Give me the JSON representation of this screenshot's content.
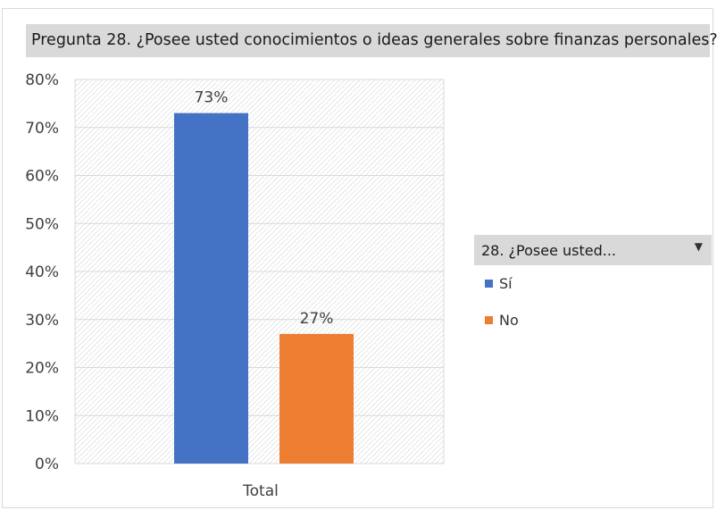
{
  "chart_data": {
    "type": "bar",
    "title": "Pregunta 28. ¿Posee usted conocimientos o ideas generales sobre finanzas personales?",
    "categories": [
      "Total"
    ],
    "series": [
      {
        "name": "Sí",
        "values": [
          73
        ],
        "label": "73%",
        "color": "#4472c4"
      },
      {
        "name": "No",
        "values": [
          27
        ],
        "label": "27%",
        "color": "#ed7d31"
      }
    ],
    "ylim": [
      0,
      80
    ],
    "yticks": [
      "0%",
      "10%",
      "20%",
      "30%",
      "40%",
      "50%",
      "60%",
      "70%",
      "80%"
    ],
    "grid": true,
    "legend": {
      "title": "28. ¿Posee usted...",
      "position": "right"
    }
  },
  "legend_dropdown_icon": "dropdown-triangle"
}
